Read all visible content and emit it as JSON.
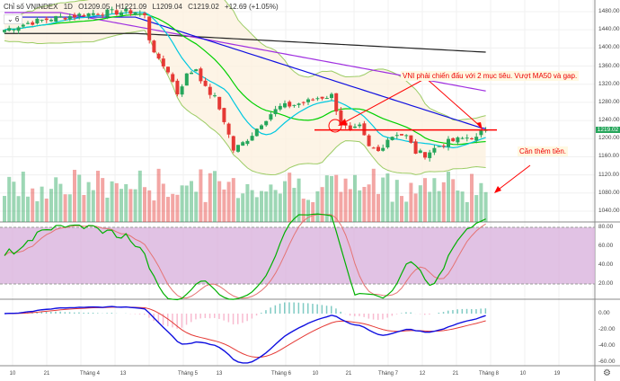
{
  "header": {
    "symbol": "Chỉ số VNINDEX",
    "interval": "1D",
    "open": "O1209.05",
    "high": "H1221.09",
    "low": "L1209.04",
    "close": "C1219.02",
    "change": "+12.69 (+1.05%)",
    "collapse": "⌄ 6"
  },
  "last_price_label": "1219.02",
  "annotations": {
    "note1": "VNI phải chiến đấu với 2 mục tiêu. Vượt MA50 và gap.",
    "note2": "Cần thêm tiền."
  },
  "chart_data": [
    {
      "type": "candlestick",
      "title": "VNINDEX 1D",
      "ylim": [
        1030,
        1490
      ],
      "y_ticks": [
        "1480.00",
        "1440.00",
        "1400.00",
        "1360.00",
        "1320.00",
        "1280.00",
        "1240.00",
        "1200.00",
        "1160.00",
        "1120.00",
        "1080.00",
        "1040.00"
      ],
      "close_keypoints": [
        [
          0,
          1440
        ],
        [
          5,
          1455
        ],
        [
          10,
          1465
        ],
        [
          20,
          1478
        ],
        [
          28,
          1480
        ],
        [
          30,
          1470
        ],
        [
          31,
          1420
        ],
        [
          33,
          1370
        ],
        [
          35,
          1350
        ],
        [
          37,
          1300
        ],
        [
          39,
          1340
        ],
        [
          41,
          1355
        ],
        [
          43,
          1310
        ],
        [
          45,
          1290
        ],
        [
          47,
          1240
        ],
        [
          49,
          1175
        ],
        [
          51,
          1190
        ],
        [
          53,
          1210
        ],
        [
          55,
          1235
        ],
        [
          57,
          1255
        ],
        [
          59,
          1270
        ],
        [
          62,
          1275
        ],
        [
          65,
          1282
        ],
        [
          67,
          1290
        ],
        [
          70,
          1295
        ],
        [
          72,
          1235
        ],
        [
          74,
          1215
        ],
        [
          76,
          1225
        ],
        [
          78,
          1180
        ],
        [
          80,
          1172
        ],
        [
          82,
          1200
        ],
        [
          84,
          1212
        ],
        [
          86,
          1205
        ],
        [
          88,
          1170
        ],
        [
          90,
          1165
        ],
        [
          92,
          1178
        ],
        [
          94,
          1190
        ],
        [
          96,
          1195
        ],
        [
          98,
          1200
        ],
        [
          100,
          1205
        ],
        [
          101,
          1200
        ],
        [
          102,
          1212
        ],
        [
          103,
          1219
        ]
      ],
      "overlays": [
        "MA10",
        "MA20",
        "MA50",
        "MA100",
        "MA200",
        "Bollinger Bands"
      ],
      "horizontal_level": 1219
    },
    {
      "type": "bar",
      "title": "Volume"
    },
    {
      "type": "line",
      "title": "Stochastic",
      "y_ticks": [
        "80.00",
        "60.00",
        "40.00",
        "20.00"
      ],
      "band": [
        20,
        80
      ]
    },
    {
      "type": "line",
      "title": "MACD",
      "y_ticks": [
        "0.00",
        "-20.00",
        "-40.00",
        "-60.00"
      ]
    }
  ],
  "x_ticks": [
    "10",
    "21",
    "Tháng 4",
    "13",
    "Tháng 5",
    "13",
    "Tháng 6",
    "10",
    "21",
    "Tháng 7",
    "12",
    "21",
    "Tháng 8",
    "10",
    "19"
  ],
  "colors": {
    "up": "#26a65b",
    "down": "#e53935",
    "ma10": "#00c8e0",
    "ma20": "#00d000",
    "ma50": "#1010e0",
    "ma100": "#a030e0",
    "ma200": "#222222",
    "bb": "#9ccc65",
    "rsi_band": "#d9b3dd"
  }
}
